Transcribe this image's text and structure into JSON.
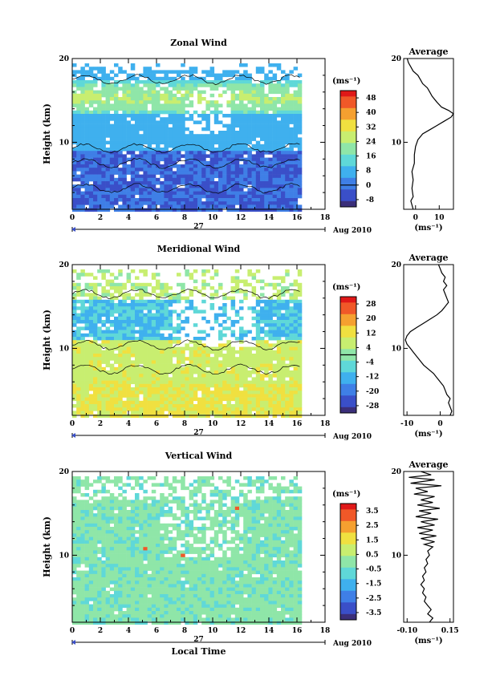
{
  "panels": [
    {
      "title": "Zonal Wind",
      "ylabel": "Height (km)",
      "yticks": [
        "20",
        "10"
      ],
      "yrange": [
        2,
        20
      ],
      "xticks": [
        "0",
        "2",
        "4",
        "6",
        "8",
        "10",
        "12",
        "14",
        "16",
        "18"
      ],
      "date_label": "27",
      "month_label": "Aug 2010",
      "cbar_unit": "(ms⁻¹)",
      "cbar_ticks": [
        "48",
        "40",
        "32",
        "24",
        "16",
        "8",
        "0",
        "-8"
      ],
      "cbar_range": [
        -12,
        52
      ],
      "cbar_zero": 0,
      "avg_title": "Average",
      "avg_xticks": [
        "0",
        "10"
      ],
      "avg_xtick_values": [
        0,
        10
      ],
      "avg_xrange": [
        -5,
        16
      ],
      "avg_xlabel": "(ms⁻¹)",
      "avg_yticks": [
        "20",
        "10"
      ],
      "avg_profile": [
        [
          2.0,
          -1
        ],
        [
          3.0,
          -2
        ],
        [
          3.5,
          -1
        ],
        [
          4.5,
          -1.5
        ],
        [
          5.5,
          -1
        ],
        [
          6.5,
          -1.5
        ],
        [
          7.5,
          -0.5
        ],
        [
          8.5,
          -0.5
        ],
        [
          9.5,
          0
        ],
        [
          10.3,
          1
        ],
        [
          11,
          3
        ],
        [
          11.5,
          6
        ],
        [
          12,
          9
        ],
        [
          12.5,
          12
        ],
        [
          13.0,
          15
        ],
        [
          13.4,
          16
        ],
        [
          13.8,
          14
        ],
        [
          14.2,
          11
        ],
        [
          14.8,
          9
        ],
        [
          15.5,
          7
        ],
        [
          16.0,
          6
        ],
        [
          16.5,
          5
        ],
        [
          17.0,
          3
        ],
        [
          17.5,
          2
        ],
        [
          18.0,
          1
        ],
        [
          18.5,
          -1
        ],
        [
          19.0,
          -2
        ],
        [
          19.5,
          -3
        ],
        [
          20,
          -3.5
        ]
      ]
    },
    {
      "title": "Meridional Wind",
      "ylabel": "Height (km)",
      "yticks": [
        "20",
        "10"
      ],
      "yrange": [
        2,
        20
      ],
      "xticks": [
        "0",
        "2",
        "4",
        "6",
        "8",
        "10",
        "12",
        "14",
        "16",
        "18"
      ],
      "date_label": "27",
      "month_label": "Aug 2010",
      "cbar_unit": "(ms⁻¹)",
      "cbar_ticks": [
        "28",
        "20",
        "12",
        "4",
        "-4",
        "-12",
        "-20",
        "-28"
      ],
      "cbar_range": [
        -32,
        32
      ],
      "cbar_zero": 0,
      "avg_title": "Average",
      "avg_xticks": [
        "-10",
        "0"
      ],
      "avg_xtick_values": [
        -10,
        0
      ],
      "avg_xrange": [
        -11,
        4
      ],
      "avg_xlabel": "(ms⁻¹)",
      "avg_yticks": [
        "20",
        "10"
      ],
      "avg_profile": [
        [
          2.0,
          3
        ],
        [
          2.5,
          3.5
        ],
        [
          3.0,
          3
        ],
        [
          3.5,
          2.5
        ],
        [
          4.0,
          3
        ],
        [
          4.5,
          2
        ],
        [
          5.0,
          1.5
        ],
        [
          5.5,
          1
        ],
        [
          6.0,
          0
        ],
        [
          6.5,
          -1
        ],
        [
          7.0,
          -2
        ],
        [
          7.5,
          -3.5
        ],
        [
          8.0,
          -5
        ],
        [
          8.5,
          -6
        ],
        [
          9.0,
          -7
        ],
        [
          9.5,
          -8
        ],
        [
          10.0,
          -9
        ],
        [
          10.5,
          -10
        ],
        [
          11.0,
          -10.5
        ],
        [
          11.5,
          -10
        ],
        [
          12.0,
          -9
        ],
        [
          12.5,
          -7
        ],
        [
          13.0,
          -5
        ],
        [
          13.5,
          -3
        ],
        [
          14.0,
          -1
        ],
        [
          14.5,
          0.5
        ],
        [
          15.0,
          1.5
        ],
        [
          15.5,
          2.5
        ],
        [
          16.0,
          2
        ],
        [
          16.5,
          1.5
        ],
        [
          17.0,
          1
        ],
        [
          17.5,
          2
        ],
        [
          18.0,
          1
        ],
        [
          18.5,
          1.5
        ],
        [
          19.0,
          0.5
        ],
        [
          19.5,
          0
        ],
        [
          20,
          -0.5
        ]
      ]
    },
    {
      "title": "Vertical Wind",
      "ylabel": "Height (km)",
      "yticks": [
        "20",
        "10"
      ],
      "yrange": [
        2,
        20
      ],
      "xticks": [
        "0",
        "2",
        "4",
        "6",
        "8",
        "10",
        "12",
        "14",
        "16",
        "18"
      ],
      "date_label": "27",
      "month_label": "Aug 2010",
      "xlabel": "Local Time",
      "cbar_unit": "(ms⁻¹)",
      "cbar_ticks": [
        "3.5",
        "2.5",
        "1.5",
        "0.5",
        "-0.5",
        "-1.5",
        "-2.5",
        "-3.5"
      ],
      "cbar_range": [
        -4,
        4
      ],
      "cbar_zero": null,
      "avg_title": "Average",
      "avg_xticks": [
        "-0.10",
        "0.15"
      ],
      "avg_xtick_values": [
        -0.1,
        0.15
      ],
      "avg_xrange": [
        -0.12,
        0.17
      ],
      "avg_xlabel": "(ms⁻¹)",
      "avg_yticks": [
        "20",
        "10"
      ],
      "avg_profile": [
        [
          2.0,
          0.03
        ],
        [
          2.5,
          0.05
        ],
        [
          3.0,
          0.02
        ],
        [
          3.5,
          0.04
        ],
        [
          4.0,
          0.02
        ],
        [
          4.5,
          0.0
        ],
        [
          5.0,
          0.01
        ],
        [
          5.5,
          -0.01
        ],
        [
          6.0,
          0.0
        ],
        [
          6.5,
          -0.02
        ],
        [
          7.0,
          0.0
        ],
        [
          7.5,
          -0.01
        ],
        [
          8.0,
          0.01
        ],
        [
          8.5,
          0.0
        ],
        [
          9.0,
          0.02
        ],
        [
          9.5,
          0.01
        ],
        [
          10.0,
          0.03
        ],
        [
          10.5,
          0.02
        ],
        [
          11.0,
          0.05
        ],
        [
          11.3,
          0.0
        ],
        [
          11.6,
          0.06
        ],
        [
          12.0,
          -0.02
        ],
        [
          12.3,
          0.07
        ],
        [
          12.6,
          -0.03
        ],
        [
          13.0,
          0.05
        ],
        [
          13.3,
          -0.04
        ],
        [
          13.6,
          0.06
        ],
        [
          14.0,
          -0.02
        ],
        [
          14.3,
          0.08
        ],
        [
          14.6,
          -0.05
        ],
        [
          15.0,
          0.04
        ],
        [
          15.3,
          -0.03
        ],
        [
          15.6,
          0.09
        ],
        [
          16.0,
          -0.04
        ],
        [
          16.3,
          0.05
        ],
        [
          16.6,
          -0.02
        ],
        [
          17.0,
          0.06
        ],
        [
          17.3,
          -0.06
        ],
        [
          17.6,
          0.02
        ],
        [
          18.0,
          -0.05
        ],
        [
          18.3,
          0.1
        ],
        [
          18.6,
          -0.08
        ],
        [
          19.0,
          0.06
        ],
        [
          19.3,
          -0.09
        ],
        [
          19.6,
          0.04
        ],
        [
          20,
          -0.02
        ]
      ]
    }
  ],
  "chart_data": [
    {
      "type": "heatmap",
      "title": "Zonal Wind",
      "ylabel": "Height (km)",
      "x_range": [
        0,
        18
      ],
      "y_range": [
        2,
        20
      ],
      "colorbar_unit": "(ms⁻¹)",
      "colorbar_range": [
        -12,
        52
      ]
    },
    {
      "type": "line",
      "title": "Average",
      "xlabel": "(ms⁻¹)",
      "ylim": [
        2,
        20
      ]
    },
    {
      "type": "heatmap",
      "title": "Meridional Wind",
      "ylabel": "Height (km)",
      "x_range": [
        0,
        18
      ],
      "y_range": [
        2,
        20
      ],
      "colorbar_unit": "(ms⁻¹)",
      "colorbar_range": [
        -32,
        32
      ]
    },
    {
      "type": "line",
      "title": "Average",
      "xlabel": "(ms⁻¹)",
      "ylim": [
        2,
        20
      ]
    },
    {
      "type": "heatmap",
      "title": "Vertical Wind",
      "xlabel": "Local Time",
      "ylabel": "Height (km)",
      "x_range": [
        0,
        18
      ],
      "y_range": [
        2,
        20
      ],
      "colorbar_unit": "(ms⁻¹)",
      "colorbar_range": [
        -4,
        4
      ]
    },
    {
      "type": "line",
      "title": "Average",
      "xlabel": "(ms⁻¹)",
      "ylim": [
        2,
        20
      ]
    }
  ],
  "colors": {
    "scale": [
      "#3b2f7a",
      "#3a4fc8",
      "#3f7fe6",
      "#3fb0ee",
      "#5fd8d8",
      "#8fe6a8",
      "#c8ee70",
      "#f0e040",
      "#f5a030",
      "#f05828",
      "#e01818"
    ]
  }
}
